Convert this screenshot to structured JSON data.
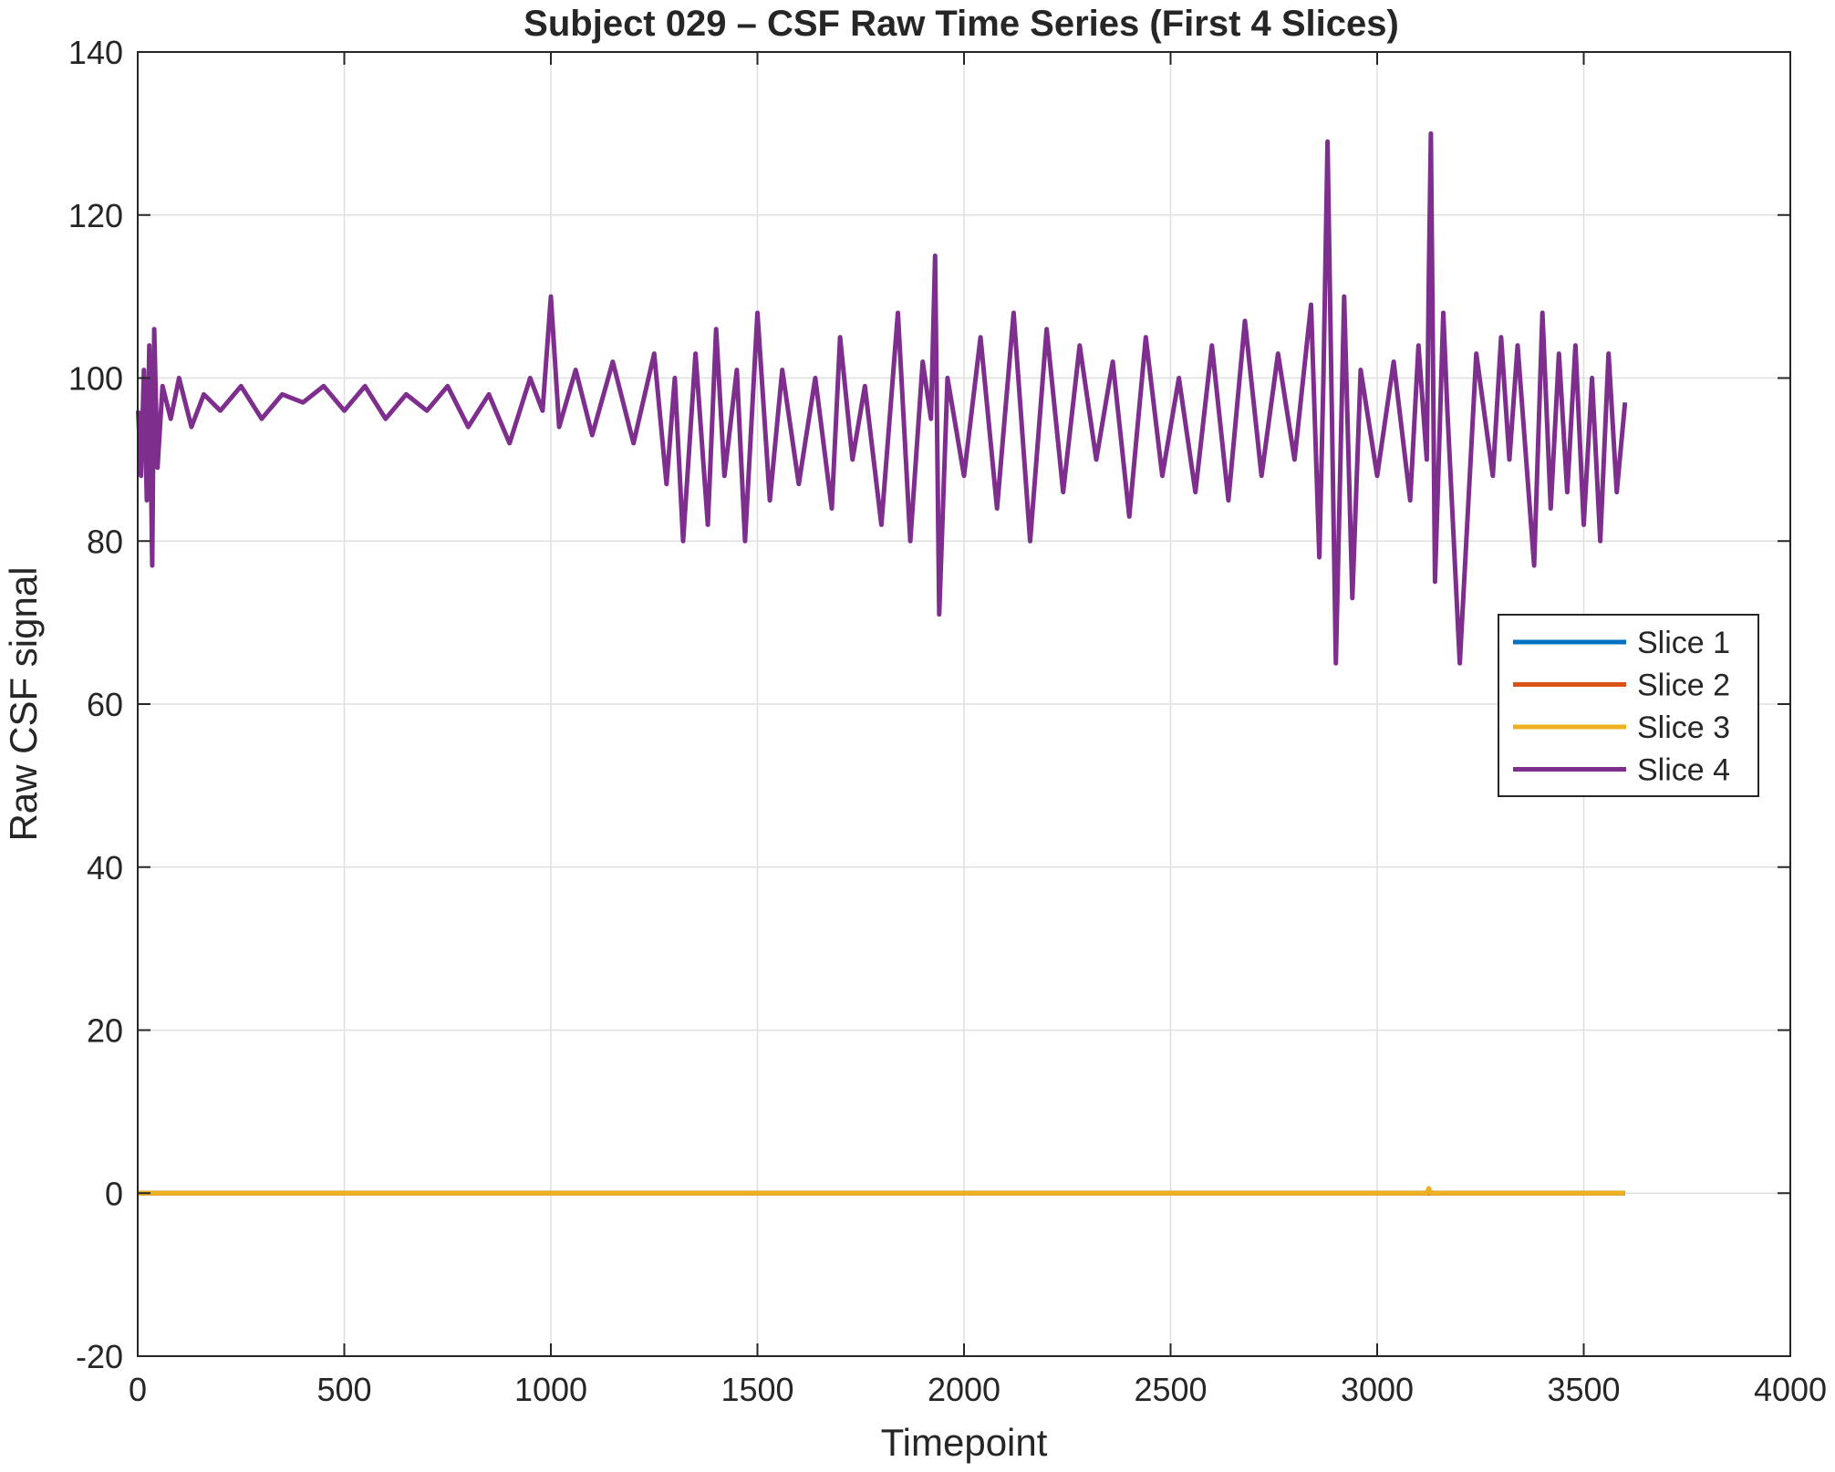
{
  "chart_data": {
    "type": "line",
    "title": "Subject 029 – CSF Raw Time Series (First 4 Slices)",
    "xlabel": "Timepoint",
    "ylabel": "Raw CSF signal",
    "xlim": [
      0,
      4000
    ],
    "ylim": [
      -20,
      140
    ],
    "xticks": [
      0,
      500,
      1000,
      1500,
      2000,
      2500,
      3000,
      3500,
      4000
    ],
    "yticks": [
      -20,
      0,
      20,
      40,
      60,
      80,
      100,
      120,
      140
    ],
    "grid": true,
    "legend_position": "right",
    "series": [
      {
        "name": "Slice 1",
        "color": "#0072BD",
        "x": [
          1,
          3600
        ],
        "y": [
          0,
          0
        ]
      },
      {
        "name": "Slice 2",
        "color": "#D95319",
        "x": [
          1,
          3600
        ],
        "y": [
          0,
          0
        ]
      },
      {
        "name": "Slice 3",
        "color": "#EDB120",
        "x": [
          1,
          3120,
          3125,
          3130,
          3600
        ],
        "y": [
          0,
          0,
          0.6,
          0,
          0
        ]
      },
      {
        "name": "Slice 4",
        "color": "#7E2F8E",
        "x": [
          1,
          8,
          15,
          22,
          28,
          35,
          40,
          48,
          60,
          80,
          100,
          130,
          160,
          200,
          250,
          300,
          350,
          400,
          450,
          500,
          550,
          600,
          650,
          700,
          750,
          800,
          850,
          900,
          950,
          980,
          1000,
          1020,
          1060,
          1100,
          1150,
          1200,
          1250,
          1280,
          1300,
          1320,
          1350,
          1380,
          1400,
          1420,
          1450,
          1470,
          1500,
          1530,
          1560,
          1600,
          1640,
          1680,
          1700,
          1730,
          1760,
          1800,
          1840,
          1870,
          1900,
          1920,
          1930,
          1940,
          1960,
          2000,
          2040,
          2080,
          2120,
          2160,
          2200,
          2240,
          2280,
          2320,
          2360,
          2400,
          2440,
          2480,
          2520,
          2560,
          2600,
          2640,
          2680,
          2720,
          2760,
          2800,
          2840,
          2860,
          2870,
          2880,
          2900,
          2920,
          2940,
          2960,
          3000,
          3040,
          3080,
          3100,
          3120,
          3125,
          3130,
          3140,
          3160,
          3170,
          3200,
          3240,
          3280,
          3300,
          3320,
          3340,
          3380,
          3400,
          3420,
          3440,
          3460,
          3480,
          3500,
          3520,
          3540,
          3560,
          3580,
          3600
        ],
        "y": [
          96,
          88,
          101,
          85,
          104,
          77,
          106,
          89,
          99,
          95,
          100,
          94,
          98,
          96,
          99,
          95,
          98,
          97,
          99,
          96,
          99,
          95,
          98,
          96,
          99,
          94,
          98,
          92,
          100,
          96,
          110,
          94,
          101,
          93,
          102,
          92,
          103,
          87,
          100,
          80,
          103,
          82,
          106,
          88,
          101,
          80,
          108,
          85,
          101,
          87,
          100,
          84,
          105,
          90,
          99,
          82,
          108,
          80,
          102,
          95,
          115,
          71,
          100,
          88,
          105,
          84,
          108,
          80,
          106,
          86,
          104,
          90,
          102,
          83,
          105,
          88,
          100,
          86,
          104,
          85,
          107,
          88,
          103,
          90,
          109,
          78,
          100,
          129,
          65,
          110,
          73,
          101,
          88,
          102,
          85,
          104,
          90,
          112,
          130,
          75,
          108,
          96,
          65,
          103,
          88,
          105,
          90,
          104,
          77,
          108,
          84,
          103,
          86,
          104,
          82,
          100,
          80,
          103,
          86,
          97
        ]
      }
    ]
  }
}
